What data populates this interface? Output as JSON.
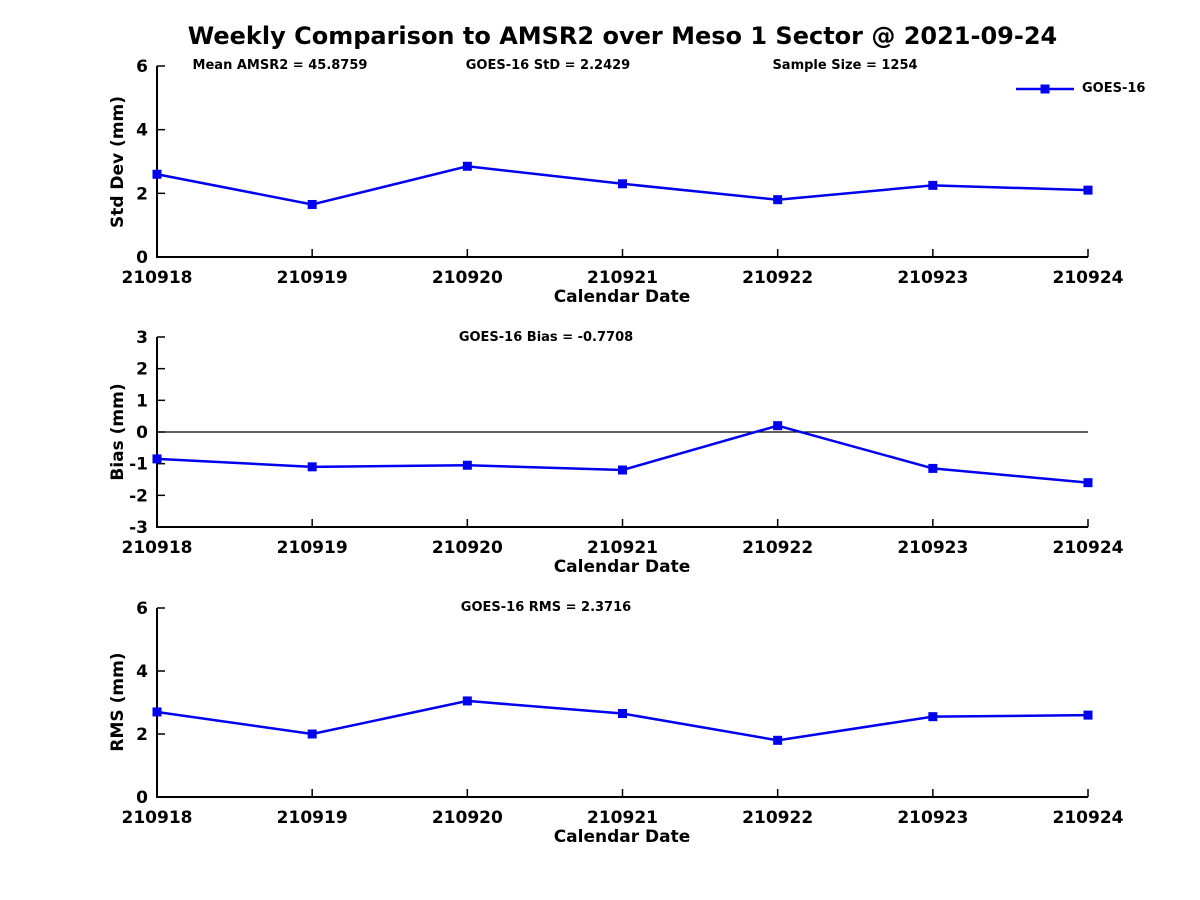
{
  "title": "Weekly Comparison to AMSR2 over Meso 1 Sector @ 2021-09-24",
  "colors": {
    "series": "#0000EE",
    "axis": "#000000",
    "text": "#000000",
    "background": "#FFFFFF"
  },
  "legend": {
    "label": "GOES-16",
    "position": "top-right"
  },
  "chart_data": {
    "type": "line",
    "marker": "square",
    "grid": false,
    "series_name": "GOES-16",
    "xlabel": "Calendar Date",
    "x_categories": [
      "210918",
      "210919",
      "210920",
      "210921",
      "210922",
      "210923",
      "210924"
    ],
    "subplots": [
      {
        "name": "std-dev",
        "ylabel": "Std Dev (mm)",
        "ylim": [
          0,
          6
        ],
        "yticks": [
          0,
          2,
          4,
          6
        ],
        "values": [
          2.6,
          1.65,
          2.85,
          2.3,
          1.8,
          2.25,
          2.1
        ],
        "annotations": [
          "Mean AMSR2 = 45.8759",
          "GOES-16 StD = 2.2429",
          "Sample Size = 1254"
        ]
      },
      {
        "name": "bias",
        "ylabel": "Bias (mm)",
        "ylim": [
          -3,
          3
        ],
        "yticks": [
          -3,
          -2,
          -1,
          0,
          1,
          2,
          3
        ],
        "zero_line": true,
        "values": [
          -0.85,
          -1.1,
          -1.05,
          -1.2,
          0.2,
          -1.15,
          -1.6
        ],
        "annotations": [
          "GOES-16 Bias  = -0.7708"
        ]
      },
      {
        "name": "rms",
        "ylabel": "RMS (mm)",
        "ylim": [
          0,
          6
        ],
        "yticks": [
          0,
          2,
          4,
          6
        ],
        "values": [
          2.7,
          2.0,
          3.05,
          2.65,
          1.8,
          2.55,
          2.6
        ],
        "annotations": [
          "GOES-16 RMS = 2.3716"
        ]
      }
    ]
  }
}
